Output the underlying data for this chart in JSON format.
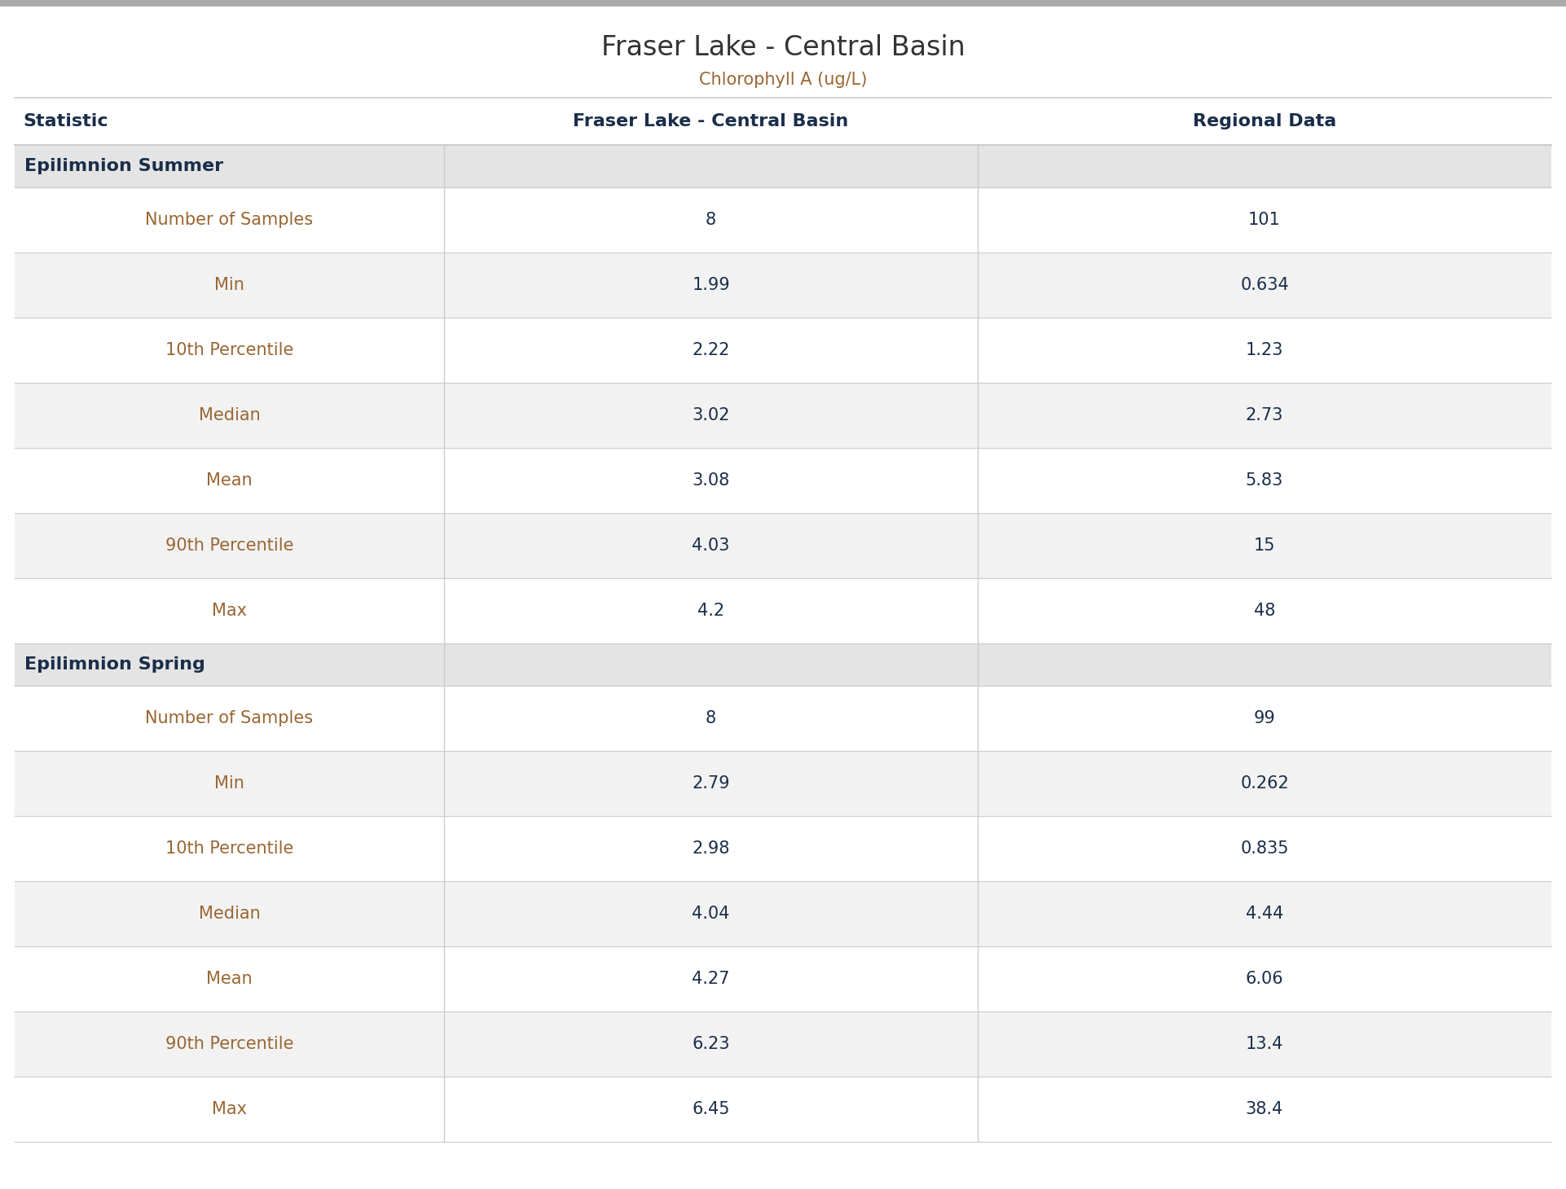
{
  "title": "Fraser Lake - Central Basin",
  "subtitle": "Chlorophyll A (ug/L)",
  "col_headers": [
    "Statistic",
    "Fraser Lake - Central Basin",
    "Regional Data"
  ],
  "sections": [
    {
      "label": "Epilimnion Summer",
      "rows": [
        [
          "Number of Samples",
          "8",
          "101"
        ],
        [
          "Min",
          "1.99",
          "0.634"
        ],
        [
          "10th Percentile",
          "2.22",
          "1.23"
        ],
        [
          "Median",
          "3.02",
          "2.73"
        ],
        [
          "Mean",
          "3.08",
          "5.83"
        ],
        [
          "90th Percentile",
          "4.03",
          "15"
        ],
        [
          "Max",
          "4.2",
          "48"
        ]
      ]
    },
    {
      "label": "Epilimnion Spring",
      "rows": [
        [
          "Number of Samples",
          "8",
          "99"
        ],
        [
          "Min",
          "2.79",
          "0.262"
        ],
        [
          "10th Percentile",
          "2.98",
          "0.835"
        ],
        [
          "Median",
          "4.04",
          "4.44"
        ],
        [
          "Mean",
          "4.27",
          "6.06"
        ],
        [
          "90th Percentile",
          "6.23",
          "13.4"
        ],
        [
          "Max",
          "6.45",
          "38.4"
        ]
      ]
    }
  ],
  "bg_color": "#ffffff",
  "section_bg": "#e4e4e4",
  "row_bg_white": "#ffffff",
  "row_bg_light": "#f2f2f2",
  "border_color": "#cccccc",
  "top_bar_color": "#aaaaaa",
  "title_color": "#333333",
  "subtitle_color": "#996633",
  "col_header_color": "#1a2e4a",
  "section_label_color": "#1a2e4a",
  "stat_name_color": "#996633",
  "value_color": "#1a2e4a",
  "fig_width": 19.22,
  "fig_height": 14.6,
  "dpi": 100
}
